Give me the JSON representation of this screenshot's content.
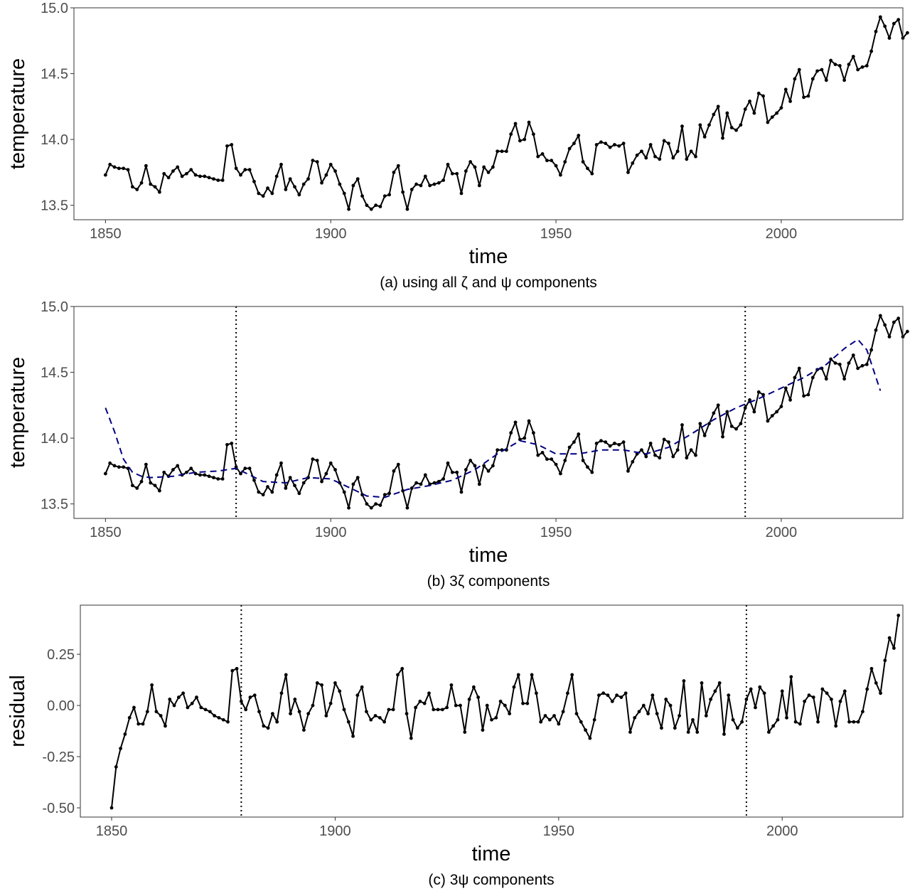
{
  "chart_data": [
    {
      "type": "line",
      "caption": "(a) using all ζ and ψ components",
      "xlabel": "time",
      "ylabel": "temperature",
      "xlim": [
        1843,
        2027
      ],
      "ylim": [
        13.39,
        15.0
      ],
      "xticks": [
        1850,
        1900,
        1950,
        2000
      ],
      "yticks": [
        13.5,
        14.0,
        14.5,
        15.0
      ],
      "ytick_labels": [
        "13.5",
        "14.0",
        "14.5",
        "15.0"
      ],
      "grid": false,
      "legend": "none",
      "series": [
        {
          "role": "observed",
          "color": "#000000",
          "style": "solid-with-points",
          "x_start": 1850,
          "x_step": 1,
          "values": [
            13.73,
            13.81,
            13.79,
            13.78,
            13.78,
            13.77,
            13.64,
            13.62,
            13.67,
            13.8,
            13.66,
            13.64,
            13.6,
            13.74,
            13.71,
            13.76,
            13.79,
            13.72,
            13.74,
            13.77,
            13.73,
            13.72,
            13.72,
            13.71,
            13.7,
            13.69,
            13.69,
            13.95,
            13.96,
            13.78,
            13.73,
            13.77,
            13.77,
            13.68,
            13.59,
            13.57,
            13.63,
            13.59,
            13.72,
            13.81,
            13.62,
            13.7,
            13.64,
            13.58,
            13.66,
            13.7,
            13.84,
            13.83,
            13.67,
            13.73,
            13.81,
            13.76,
            13.66,
            13.59,
            13.47,
            13.65,
            13.7,
            13.57,
            13.5,
            13.47,
            13.5,
            13.49,
            13.57,
            13.58,
            13.75,
            13.8,
            13.6,
            13.47,
            13.62,
            13.66,
            13.65,
            13.72,
            13.65,
            13.66,
            13.67,
            13.69,
            13.81,
            13.74,
            13.74,
            13.59,
            13.76,
            13.83,
            13.79,
            13.65,
            13.79,
            13.75,
            13.79,
            13.91,
            13.91,
            13.91,
            14.04,
            14.12,
            13.99,
            14.0,
            14.13,
            14.04,
            13.87,
            13.89,
            13.84,
            13.84,
            13.8,
            13.73,
            13.83,
            13.93,
            13.97,
            14.03,
            13.83,
            13.78,
            13.74,
            13.96,
            13.98,
            13.97,
            13.94,
            13.96,
            13.95,
            13.97,
            13.75,
            13.82,
            13.88,
            13.91,
            13.86,
            13.96,
            13.87,
            13.85,
            13.99,
            13.97,
            13.86,
            13.91,
            14.1,
            13.85,
            13.91,
            13.87,
            14.11,
            14.02,
            14.11,
            14.19,
            14.25,
            14.01,
            14.2,
            14.09,
            14.07,
            14.11,
            14.23,
            14.29,
            14.2,
            14.35,
            14.33,
            14.13,
            14.17,
            14.2,
            14.24,
            14.38,
            14.29,
            14.46,
            14.53,
            14.32,
            14.33,
            14.46,
            14.52,
            14.53,
            14.45,
            14.6,
            14.57,
            14.56,
            14.45,
            14.57,
            14.63,
            14.53,
            14.55,
            14.56,
            14.67,
            14.82,
            14.93,
            14.86,
            14.77,
            14.88,
            14.91,
            14.77,
            14.81
          ]
        }
      ]
    },
    {
      "type": "line",
      "caption": "(b) 3ζ components",
      "xlabel": "time",
      "ylabel": "temperature",
      "xlim": [
        1843,
        2027
      ],
      "ylim": [
        13.39,
        15.0
      ],
      "xticks": [
        1850,
        1900,
        1950,
        2000
      ],
      "yticks": [
        13.5,
        14.0,
        14.5,
        15.0
      ],
      "ytick_labels": [
        "13.5",
        "14.0",
        "14.5",
        "15.0"
      ],
      "grid": false,
      "legend": "none",
      "vlines": [
        1879,
        1992
      ],
      "series": [
        {
          "role": "observed",
          "color": "#000000",
          "style": "solid-with-points",
          "x_start": 1850,
          "x_step": 1,
          "values": [
            13.73,
            13.81,
            13.79,
            13.78,
            13.78,
            13.77,
            13.64,
            13.62,
            13.67,
            13.8,
            13.66,
            13.64,
            13.6,
            13.74,
            13.71,
            13.76,
            13.79,
            13.72,
            13.74,
            13.77,
            13.73,
            13.72,
            13.72,
            13.71,
            13.7,
            13.69,
            13.69,
            13.95,
            13.96,
            13.78,
            13.73,
            13.77,
            13.77,
            13.68,
            13.59,
            13.57,
            13.63,
            13.59,
            13.72,
            13.81,
            13.62,
            13.7,
            13.64,
            13.58,
            13.66,
            13.7,
            13.84,
            13.83,
            13.67,
            13.73,
            13.81,
            13.76,
            13.66,
            13.59,
            13.47,
            13.65,
            13.7,
            13.57,
            13.5,
            13.47,
            13.5,
            13.49,
            13.57,
            13.58,
            13.75,
            13.8,
            13.6,
            13.47,
            13.62,
            13.66,
            13.65,
            13.72,
            13.65,
            13.66,
            13.67,
            13.69,
            13.81,
            13.74,
            13.74,
            13.59,
            13.76,
            13.83,
            13.79,
            13.65,
            13.79,
            13.75,
            13.79,
            13.91,
            13.91,
            13.91,
            14.04,
            14.12,
            13.99,
            14.0,
            14.13,
            14.04,
            13.87,
            13.89,
            13.84,
            13.84,
            13.8,
            13.73,
            13.83,
            13.93,
            13.97,
            14.03,
            13.83,
            13.78,
            13.74,
            13.96,
            13.98,
            13.97,
            13.94,
            13.96,
            13.95,
            13.97,
            13.75,
            13.82,
            13.88,
            13.91,
            13.86,
            13.96,
            13.87,
            13.85,
            13.99,
            13.97,
            13.86,
            13.91,
            14.1,
            13.85,
            13.91,
            13.87,
            14.11,
            14.02,
            14.11,
            14.19,
            14.25,
            14.01,
            14.2,
            14.09,
            14.07,
            14.11,
            14.23,
            14.29,
            14.2,
            14.35,
            14.33,
            14.13,
            14.17,
            14.2,
            14.24,
            14.38,
            14.29,
            14.46,
            14.53,
            14.32,
            14.33,
            14.46,
            14.52,
            14.53,
            14.45,
            14.6,
            14.57,
            14.56,
            14.45,
            14.57,
            14.63,
            14.53,
            14.55,
            14.56,
            14.67,
            14.82,
            14.93,
            14.86,
            14.77,
            14.88,
            14.91,
            14.77,
            14.81
          ]
        },
        {
          "role": "trend",
          "color": "#000080",
          "style": "dashed",
          "x": [
            1850,
            1852,
            1854,
            1856,
            1858,
            1860,
            1865,
            1870,
            1875,
            1879,
            1882,
            1885,
            1890,
            1895,
            1900,
            1905,
            1908,
            1912,
            1917,
            1922,
            1927,
            1932,
            1937,
            1942,
            1946,
            1950,
            1955,
            1960,
            1965,
            1970,
            1975,
            1980,
            1985,
            1990,
            1995,
            2000,
            2005,
            2010,
            2014,
            2017,
            2019,
            2022
          ],
          "values": [
            14.23,
            14.05,
            13.84,
            13.74,
            13.71,
            13.7,
            13.71,
            13.74,
            13.75,
            13.77,
            13.72,
            13.67,
            13.66,
            13.7,
            13.69,
            13.61,
            13.56,
            13.55,
            13.61,
            13.64,
            13.68,
            13.76,
            13.88,
            13.98,
            13.95,
            13.88,
            13.88,
            13.91,
            13.91,
            13.88,
            13.93,
            14.03,
            14.14,
            14.23,
            14.3,
            14.38,
            14.46,
            14.56,
            14.68,
            14.75,
            14.67,
            14.36
          ]
        }
      ]
    },
    {
      "type": "line",
      "caption": "(c) 3ψ components",
      "xlabel": "time",
      "ylabel": "residual",
      "xlim": [
        1843,
        2027
      ],
      "ylim": [
        -0.545,
        0.49
      ],
      "xticks": [
        1850,
        1900,
        1950,
        2000
      ],
      "yticks": [
        -0.5,
        -0.25,
        0.0,
        0.25
      ],
      "ytick_labels": [
        "-0.50",
        "-0.25",
        "0.00",
        "0.25"
      ],
      "grid": false,
      "legend": "none",
      "vlines": [
        1879,
        1992
      ],
      "series": [
        {
          "role": "residual",
          "color": "#000000",
          "style": "solid-with-points",
          "x_start": 1850,
          "x_step": 1,
          "values": [
            -0.5,
            -0.3,
            -0.21,
            -0.14,
            -0.06,
            -0.01,
            -0.09,
            -0.09,
            -0.03,
            0.1,
            -0.03,
            -0.05,
            -0.1,
            0.03,
            0.0,
            0.04,
            0.06,
            -0.01,
            0.01,
            0.04,
            -0.01,
            -0.02,
            -0.03,
            -0.05,
            -0.06,
            -0.07,
            -0.08,
            0.17,
            0.18,
            0.02,
            -0.02,
            0.04,
            0.05,
            -0.03,
            -0.1,
            -0.11,
            -0.04,
            -0.08,
            0.06,
            0.15,
            -0.04,
            0.03,
            -0.03,
            -0.12,
            -0.04,
            0.0,
            0.11,
            0.1,
            -0.05,
            0.01,
            0.11,
            0.07,
            -0.02,
            -0.08,
            -0.15,
            0.05,
            0.09,
            -0.03,
            -0.07,
            -0.05,
            -0.06,
            -0.08,
            -0.02,
            -0.02,
            0.15,
            0.18,
            -0.04,
            -0.16,
            -0.01,
            0.02,
            0.01,
            0.06,
            -0.02,
            -0.02,
            -0.02,
            -0.01,
            0.1,
            0.0,
            0.0,
            -0.13,
            0.03,
            0.09,
            0.04,
            -0.12,
            0.0,
            -0.07,
            -0.06,
            0.02,
            0.0,
            -0.04,
            0.09,
            0.15,
            0.01,
            0.01,
            0.15,
            0.06,
            -0.08,
            -0.05,
            -0.07,
            -0.05,
            -0.09,
            -0.03,
            0.06,
            0.15,
            -0.04,
            -0.08,
            -0.12,
            -0.16,
            -0.07,
            0.05,
            0.06,
            0.05,
            0.02,
            0.05,
            0.04,
            0.06,
            -0.13,
            -0.06,
            -0.03,
            0.0,
            -0.04,
            0.05,
            -0.04,
            -0.11,
            0.03,
            0.0,
            -0.11,
            -0.05,
            0.12,
            -0.13,
            -0.07,
            -0.13,
            0.11,
            -0.05,
            0.03,
            0.07,
            0.11,
            -0.14,
            0.05,
            -0.07,
            -0.11,
            -0.08,
            0.03,
            0.08,
            -0.01,
            0.09,
            0.06,
            -0.13,
            -0.1,
            -0.07,
            0.07,
            -0.06,
            0.14,
            -0.08,
            -0.09,
            0.02,
            0.05,
            0.04,
            -0.08,
            0.08,
            0.06,
            0.03,
            -0.1,
            0.02,
            0.07,
            -0.08,
            -0.08,
            -0.08,
            -0.03,
            0.08,
            0.18,
            0.11,
            0.06,
            0.22,
            0.33,
            0.28,
            0.44
          ]
        }
      ]
    }
  ]
}
